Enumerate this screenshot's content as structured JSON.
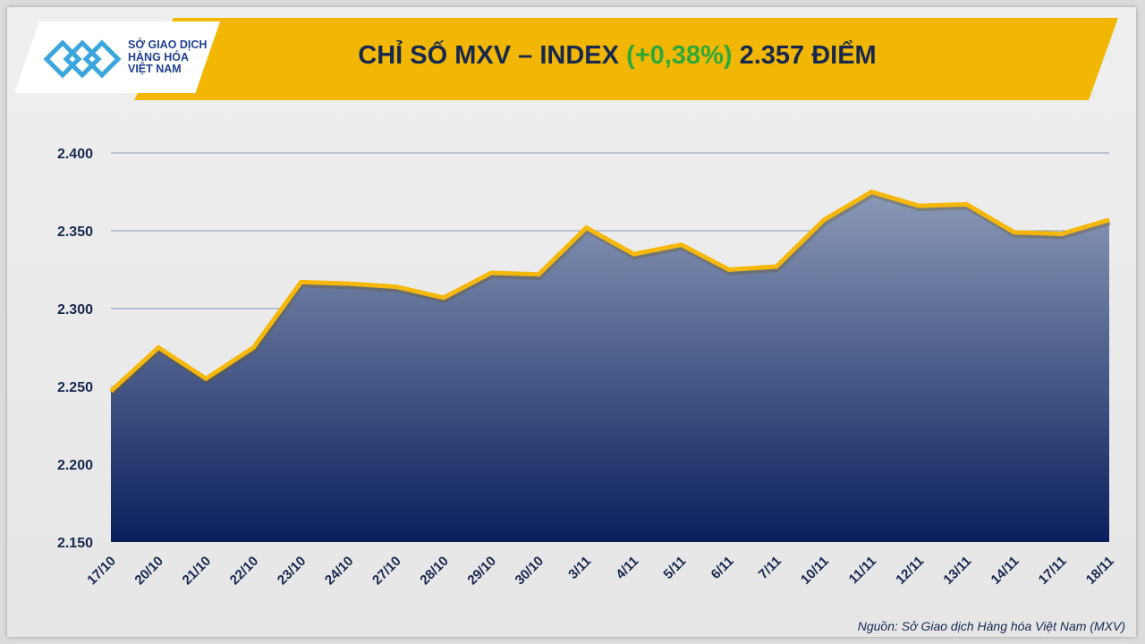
{
  "header": {
    "title_prefix": "CHỈ SỐ MXV – INDEX ",
    "title_change": "(+0,38%)",
    "title_suffix": " 2.357 ĐIỂM"
  },
  "logo": {
    "line1": "SỞ GIAO DỊCH",
    "line2": "HÀNG HÓA",
    "line3": "VIỆT NAM"
  },
  "source": "Nguồn: Sở Giao dịch Hàng hóa Việt Nam (MXV)",
  "colors": {
    "banner": "#f2b705",
    "line": "#f5b80a",
    "area_top": "#8b9ab8",
    "area_bottom": "#0a1f5c",
    "positive": "#2fa83a",
    "text": "#17284f"
  },
  "chart_data": {
    "type": "area",
    "categories": [
      "17/10",
      "20/10",
      "21/10",
      "22/10",
      "23/10",
      "24/10",
      "27/10",
      "28/10",
      "29/10",
      "30/10",
      "3/11",
      "4/11",
      "5/11",
      "6/11",
      "7/11",
      "10/11",
      "11/11",
      "12/11",
      "13/11",
      "14/11",
      "17/11",
      "18/11"
    ],
    "values": [
      2247,
      2275,
      2255,
      2275,
      2317,
      2316,
      2314,
      2307,
      2323,
      2322,
      2352,
      2335,
      2341,
      2325,
      2327,
      2357,
      2375,
      2366,
      2367,
      2349,
      2348,
      2357
    ],
    "ylim": [
      2150,
      2400
    ],
    "yticks": [
      2150,
      2200,
      2250,
      2300,
      2350,
      2400
    ],
    "ytick_labels": [
      "2.150",
      "2.200",
      "2.250",
      "2.300",
      "2.350",
      "2.400"
    ],
    "grid": true
  }
}
